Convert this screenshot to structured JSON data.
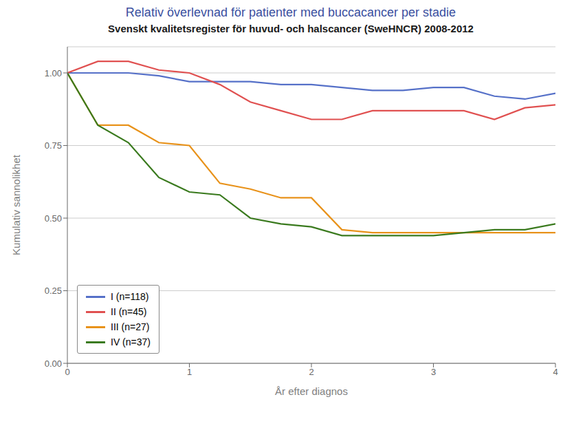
{
  "chart_data": {
    "type": "line",
    "title": "Relativ överlevnad för patienter med buccacancer per stadie",
    "subtitle": "Svenskt kvalitetsregister för huvud- och halscancer (SweHNCR) 2008-2012",
    "xlabel": "År efter diagnos",
    "ylabel": "Kumulativ sannolikhet",
    "x": [
      0,
      0.25,
      0.5,
      0.75,
      1.0,
      1.25,
      1.5,
      1.75,
      2.0,
      2.25,
      2.5,
      2.75,
      3.0,
      3.25,
      3.5,
      3.75,
      4.0
    ],
    "series": [
      {
        "name": "I (n=118)",
        "color": "#5570c8",
        "values": [
          1.0,
          1.0,
          1.0,
          0.99,
          0.97,
          0.97,
          0.97,
          0.96,
          0.96,
          0.95,
          0.94,
          0.94,
          0.95,
          0.95,
          0.92,
          0.91,
          0.93
        ]
      },
      {
        "name": "II (n=45)",
        "color": "#e05050",
        "values": [
          1.0,
          1.04,
          1.04,
          1.01,
          1.0,
          0.96,
          0.9,
          0.87,
          0.84,
          0.84,
          0.87,
          0.87,
          0.87,
          0.87,
          0.84,
          0.88,
          0.89
        ]
      },
      {
        "name": "III (n=27)",
        "color": "#e8921a",
        "values": [
          1.0,
          0.82,
          0.82,
          0.76,
          0.75,
          0.62,
          0.6,
          0.57,
          0.57,
          0.46,
          0.45,
          0.45,
          0.45,
          0.45,
          0.45,
          0.45,
          0.45
        ]
      },
      {
        "name": "IV (n=37)",
        "color": "#3a7a1e",
        "values": [
          1.0,
          0.82,
          0.76,
          0.64,
          0.59,
          0.58,
          0.5,
          0.48,
          0.47,
          0.44,
          0.44,
          0.44,
          0.44,
          0.45,
          0.46,
          0.46,
          0.48
        ]
      }
    ],
    "xlim": [
      0,
      4
    ],
    "ylim": [
      0,
      1.09
    ],
    "xticks": [
      0,
      1,
      2,
      3,
      4
    ],
    "yticks": [
      {
        "value": 0,
        "label": "0.00"
      },
      {
        "value": 0.25,
        "label": "0.25"
      },
      {
        "value": 0.5,
        "label": "0.50"
      },
      {
        "value": 0.75,
        "label": "0.75"
      },
      {
        "value": 1,
        "label": "1.00"
      }
    ],
    "grid": true,
    "legend": "lower left"
  }
}
